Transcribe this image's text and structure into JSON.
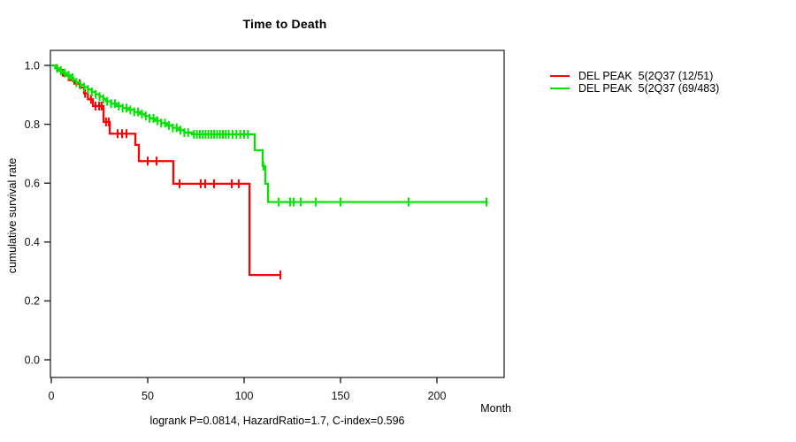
{
  "title": "Time to Death",
  "axes": {
    "x_label": "Month",
    "y_label": "cumulative survival rate"
  },
  "footer": "logrank P=0.0814, HazardRatio=1.7, C-index=0.596",
  "legend": {
    "items": [
      {
        "label": "DEL PEAK  5(2Q37 (12/51)",
        "color": "#ff0000"
      },
      {
        "label": "DEL PEAK  5(2Q37 (69/483)",
        "color": "#00e400"
      }
    ]
  },
  "chart_data": {
    "type": "line",
    "subtype": "kaplan_meier_step_survival",
    "title": "Time to Death",
    "xlabel": "Month",
    "ylabel": "cumulative survival rate",
    "xlim": [
      0,
      235
    ],
    "ylim": [
      0.0,
      1.0
    ],
    "x_ticks": [
      0,
      50,
      100,
      150,
      200
    ],
    "y_ticks": [
      1.0,
      0.8,
      0.6,
      0.4,
      0.2,
      0.0
    ],
    "grid": false,
    "legend_position": "right-outside",
    "annotation": "logrank P=0.0814, HazardRatio=1.7, C-index=0.596",
    "series": [
      {
        "name": "DEL PEAK  5(2Q37 (12/51)",
        "color": "#ff0000",
        "steps": [
          [
            0,
            1.0
          ],
          [
            3,
            0.985
          ],
          [
            6,
            0.965
          ],
          [
            9,
            0.95
          ],
          [
            12,
            0.938
          ],
          [
            15,
            0.925
          ],
          [
            17,
            0.905
          ],
          [
            19,
            0.885
          ],
          [
            21.6,
            0.862
          ],
          [
            27.1,
            0.808
          ],
          [
            30.3,
            0.768
          ],
          [
            43.6,
            0.73
          ],
          [
            45.4,
            0.675
          ],
          [
            63.3,
            0.598
          ],
          [
            102.8,
            0.288
          ]
        ],
        "end_month": 119.3,
        "censor_months": [
          14.7,
          17.5,
          20.6,
          22.9,
          24.8,
          26.1,
          28.4,
          29.8,
          34.4,
          36.7,
          39,
          50,
          54.6,
          66.5,
          77.5,
          79.8,
          84.4,
          93.6,
          97.2,
          118.8
        ]
      },
      {
        "name": "DEL PEAK  5(2Q37 (69/483)",
        "color": "#00e400",
        "steps": [
          [
            0,
            1.0
          ],
          [
            2,
            0.99
          ],
          [
            4,
            0.982
          ],
          [
            6,
            0.974
          ],
          [
            8,
            0.966
          ],
          [
            10,
            0.958
          ],
          [
            11.5,
            0.95
          ],
          [
            13,
            0.942
          ],
          [
            15,
            0.934
          ],
          [
            17,
            0.926
          ],
          [
            19,
            0.918
          ],
          [
            21,
            0.91
          ],
          [
            23,
            0.902
          ],
          [
            25,
            0.894
          ],
          [
            27,
            0.886
          ],
          [
            28.5,
            0.878
          ],
          [
            31,
            0.87
          ],
          [
            34,
            0.862
          ],
          [
            37,
            0.855
          ],
          [
            40,
            0.849
          ],
          [
            43,
            0.842
          ],
          [
            46,
            0.835
          ],
          [
            48.5,
            0.828
          ],
          [
            51,
            0.82
          ],
          [
            54,
            0.812
          ],
          [
            57,
            0.804
          ],
          [
            60,
            0.796
          ],
          [
            63,
            0.788
          ],
          [
            66,
            0.78
          ],
          [
            69,
            0.772
          ],
          [
            73,
            0.766
          ],
          [
            105.5,
            0.712
          ],
          [
            109.6,
            0.658
          ],
          [
            111,
            0.598
          ],
          [
            112.4,
            0.536
          ]
        ],
        "end_month": 226.3,
        "censor_months": [
          3,
          5,
          7,
          9,
          11,
          13,
          15,
          17,
          19,
          21,
          23,
          25,
          27,
          29,
          31,
          33,
          35,
          37,
          39,
          41,
          43,
          45,
          47,
          49,
          51,
          53,
          55,
          57,
          59,
          61,
          63,
          65,
          67,
          69,
          71,
          74,
          75.5,
          77,
          78.5,
          80,
          81.5,
          83,
          84.5,
          86,
          87.5,
          89,
          90.5,
          92,
          94,
          96,
          98,
          100,
          102,
          110,
          117.9,
          123.9,
          125.7,
          129.4,
          137.2,
          150,
          185.3,
          225.7
        ]
      }
    ]
  }
}
